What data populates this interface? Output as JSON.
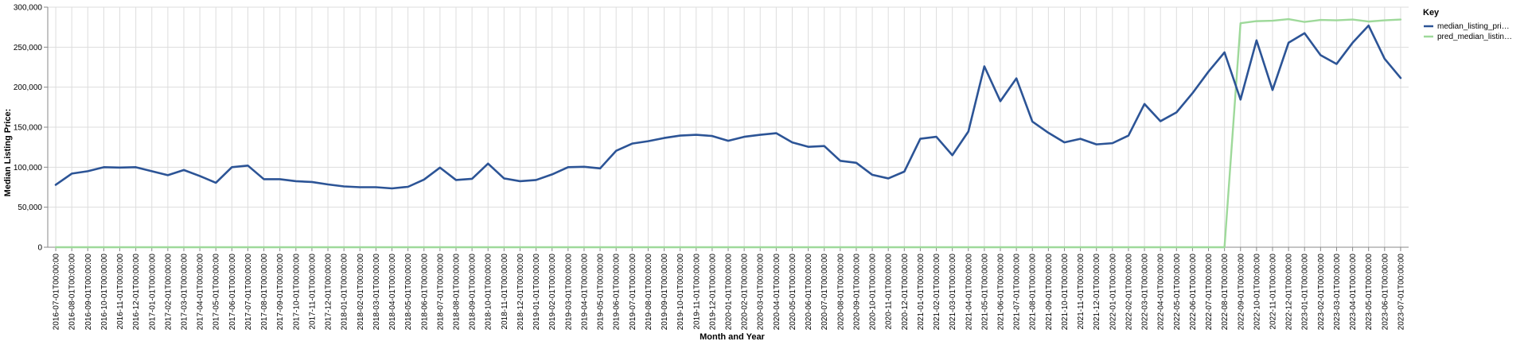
{
  "chart_data": {
    "type": "line",
    "title": "",
    "xlabel": "Month and Year",
    "ylabel": "Median Listing Price:",
    "ylim": [
      0,
      300000
    ],
    "yticks": [
      "0",
      "50,000",
      "100,000",
      "150,000",
      "200,000",
      "250,000",
      "300,000"
    ],
    "grid": true,
    "legend_position": "right",
    "legend_title": "Key",
    "x": [
      "2016-07-01T00:00:00",
      "2016-08-01T00:00:00",
      "2016-09-01T00:00:00",
      "2016-10-01T00:00:00",
      "2016-11-01T00:00:00",
      "2016-12-01T00:00:00",
      "2017-01-01T00:00:00",
      "2017-02-01T00:00:00",
      "2017-03-01T00:00:00",
      "2017-04-01T00:00:00",
      "2017-05-01T00:00:00",
      "2017-06-01T00:00:00",
      "2017-07-01T00:00:00",
      "2017-08-01T00:00:00",
      "2017-09-01T00:00:00",
      "2017-10-01T00:00:00",
      "2017-11-01T00:00:00",
      "2017-12-01T00:00:00",
      "2018-01-01T00:00:00",
      "2018-02-01T00:00:00",
      "2018-03-01T00:00:00",
      "2018-04-01T00:00:00",
      "2018-05-01T00:00:00",
      "2018-06-01T00:00:00",
      "2018-07-01T00:00:00",
      "2018-08-01T00:00:00",
      "2018-09-01T00:00:00",
      "2018-10-01T00:00:00",
      "2018-11-01T00:00:00",
      "2018-12-01T00:00:00",
      "2019-01-01T00:00:00",
      "2019-02-01T00:00:00",
      "2019-03-01T00:00:00",
      "2019-04-01T00:00:00",
      "2019-05-01T00:00:00",
      "2019-06-01T00:00:00",
      "2019-07-01T00:00:00",
      "2019-08-01T00:00:00",
      "2019-09-01T00:00:00",
      "2019-10-01T00:00:00",
      "2019-11-01T00:00:00",
      "2019-12-01T00:00:00",
      "2020-01-01T00:00:00",
      "2020-02-01T00:00:00",
      "2020-03-01T00:00:00",
      "2020-04-01T00:00:00",
      "2020-05-01T00:00:00",
      "2020-06-01T00:00:00",
      "2020-07-01T00:00:00",
      "2020-08-01T00:00:00",
      "2020-09-01T00:00:00",
      "2020-10-01T00:00:00",
      "2020-11-01T00:00:00",
      "2020-12-01T00:00:00",
      "2021-01-01T00:00:00",
      "2021-02-01T00:00:00",
      "2021-03-01T00:00:00",
      "2021-04-01T00:00:00",
      "2021-05-01T00:00:00",
      "2021-06-01T00:00:00",
      "2021-07-01T00:00:00",
      "2021-08-01T00:00:00",
      "2021-09-01T00:00:00",
      "2021-10-01T00:00:00",
      "2021-11-01T00:00:00",
      "2021-12-01T00:00:00",
      "2022-01-01T00:00:00",
      "2022-02-01T00:00:00",
      "2022-03-01T00:00:00",
      "2022-04-01T00:00:00",
      "2022-05-01T00:00:00",
      "2022-06-01T00:00:00",
      "2022-07-01T00:00:00",
      "2022-08-01T00:00:00",
      "2022-09-01T00:00:00",
      "2022-10-01T00:00:00",
      "2022-11-01T00:00:00",
      "2022-12-01T00:00:00",
      "2023-01-01T00:00:00",
      "2023-02-01T00:00:00",
      "2023-03-01T00:00:00",
      "2023-04-01T00:00:00",
      "2023-05-01T00:00:00",
      "2023-06-01T00:00:00",
      "2023-07-01T00:00:00"
    ],
    "series": [
      {
        "name": "median_listing_pri…",
        "color": "#2c5496",
        "values": [
          78000,
          92000,
          95000,
          100000,
          99500,
          100000,
          95000,
          90000,
          96500,
          89000,
          80500,
          100000,
          102000,
          85000,
          85000,
          82500,
          81500,
          78500,
          76000,
          75000,
          75000,
          73500,
          75500,
          84500,
          99500,
          84000,
          85500,
          104500,
          86000,
          82500,
          84000,
          91000,
          100000,
          100500,
          98500,
          120500,
          129500,
          132500,
          136500,
          139500,
          140500,
          139000,
          133000,
          138000,
          140500,
          142500,
          131000,
          125500,
          126500,
          108000,
          105500,
          90500,
          86000,
          94500,
          135500,
          138000,
          115000,
          144500,
          226000,
          182500,
          211000,
          157000,
          143000,
          131000,
          135500,
          128500,
          130000,
          139500,
          179000,
          157500,
          168500,
          192500,
          219500,
          243500,
          184500,
          258500,
          196500,
          255500,
          267500,
          240000,
          229000,
          255500,
          277000,
          235500,
          211500
        ]
      },
      {
        "name": "pred_median_listin…",
        "color": "#9ed99a",
        "values": [
          0,
          0,
          0,
          0,
          0,
          0,
          0,
          0,
          0,
          0,
          0,
          0,
          0,
          0,
          0,
          0,
          0,
          0,
          0,
          0,
          0,
          0,
          0,
          0,
          0,
          0,
          0,
          0,
          0,
          0,
          0,
          0,
          0,
          0,
          0,
          0,
          0,
          0,
          0,
          0,
          0,
          0,
          0,
          0,
          0,
          0,
          0,
          0,
          0,
          0,
          0,
          0,
          0,
          0,
          0,
          0,
          0,
          0,
          0,
          0,
          0,
          0,
          0,
          0,
          0,
          0,
          0,
          0,
          0,
          0,
          0,
          0,
          0,
          0,
          280000,
          282500,
          283000,
          285000,
          281500,
          284000,
          283500,
          284500,
          282000,
          283500,
          284500
        ]
      }
    ]
  }
}
